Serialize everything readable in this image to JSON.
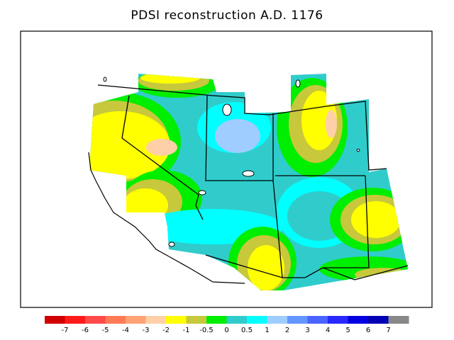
{
  "title": "PDSI reconstruction A.D. 1176",
  "colorbar": {
    "labels": [
      "-7",
      "-6",
      "-5",
      "-4",
      "-3",
      "-2",
      "-1",
      "-0.5",
      "0",
      "0.5",
      "1",
      "2",
      "3",
      "4",
      "5",
      "6",
      "7"
    ],
    "colors": [
      "#d10000",
      "#ff1a1a",
      "#ff4a4a",
      "#ff7a55",
      "#ffa276",
      "#ffd0a8",
      "#ffff00",
      "#c8c83c",
      "#00ee00",
      "#30cccc",
      "#00ffff",
      "#a0cdff",
      "#6496ff",
      "#4a64ff",
      "#2828ff",
      "#0000e0",
      "#0000b4",
      "#888888"
    ]
  },
  "palette": {
    "yellow": "#ffff00",
    "olive": "#c8c83c",
    "green": "#00ee00",
    "teal": "#30cccc",
    "cyan": "#00ffff",
    "lightblue": "#a0cdff",
    "peach": "#ffd0a8"
  }
}
